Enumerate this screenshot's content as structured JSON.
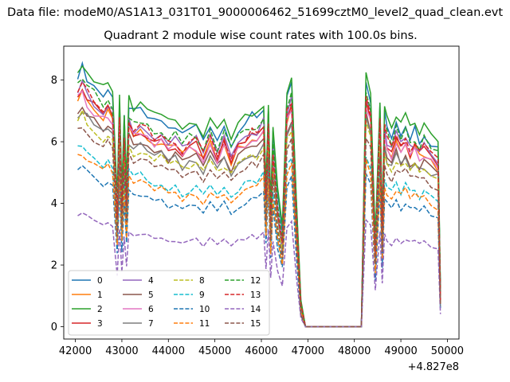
{
  "figure": {
    "suptitle": "Data file: modeM0/AS1A13_031T01_9000006462_51699cztM0_level2_quad_clean.evt",
    "title": "Quadrant 2 module wise count rates with 100.0s bins.",
    "offset_text": "+4.827e8"
  },
  "chart_data": {
    "type": "line",
    "title": "Quadrant 2 module wise count rates with 100.0s bins.",
    "xlabel": "",
    "ylabel": "",
    "x_offset": 482700000,
    "xlim": [
      41750,
      50250
    ],
    "ylim": [
      -0.4,
      9.1
    ],
    "xticks": [
      42000,
      43000,
      44000,
      45000,
      46000,
      47000,
      48000,
      49000,
      50000
    ],
    "xtick_labels": [
      "42000",
      "43000",
      "44000",
      "45000",
      "46000",
      "47000",
      "48000",
      "49000",
      "50000"
    ],
    "yticks": [
      0,
      2,
      4,
      6,
      8
    ],
    "ytick_labels": [
      "0",
      "2",
      "4",
      "6",
      "8"
    ],
    "grid": false,
    "legend": {
      "placement": "lower-left",
      "columns": 4
    },
    "x_anchor": [
      42050,
      42150,
      42250,
      42400,
      42600,
      42700,
      42800,
      42900,
      42950,
      43000,
      43050,
      43100,
      43150,
      43250,
      43400,
      43550,
      43700,
      43850,
      44000,
      44150,
      44300,
      44450,
      44600,
      44750,
      44900,
      45050,
      45200,
      45350,
      45500,
      45650,
      45800,
      45900,
      46050,
      46100,
      46150,
      46200,
      46250,
      46350,
      46450,
      46550,
      46650,
      46750,
      46850,
      46950,
      47050,
      47100,
      47200,
      47500,
      47800,
      48150,
      48250,
      48350,
      48450,
      48550,
      48600,
      48650,
      48700,
      48800,
      48900,
      49000,
      49100,
      49200,
      49300,
      49400,
      49500,
      49650,
      49800,
      49850
    ],
    "series": [
      {
        "name": "0",
        "color": "#1f77b4",
        "dash": "solid",
        "scale": 1.0,
        "offset": 0.2
      },
      {
        "name": "1",
        "color": "#ff7f0e",
        "dash": "solid",
        "scale": 0.94,
        "offset": -0.1
      },
      {
        "name": "2",
        "color": "#2ca02c",
        "dash": "solid",
        "scale": 1.0,
        "offset": 0.4
      },
      {
        "name": "3",
        "color": "#d62728",
        "dash": "solid",
        "scale": 0.94,
        "offset": 0.0
      },
      {
        "name": "4",
        "color": "#9467bd",
        "dash": "solid",
        "scale": 0.96,
        "offset": 0.0
      },
      {
        "name": "5",
        "color": "#8c564b",
        "dash": "solid",
        "scale": 0.88,
        "offset": 0.0
      },
      {
        "name": "6",
        "color": "#e377c2",
        "dash": "solid",
        "scale": 0.92,
        "offset": 0.0
      },
      {
        "name": "7",
        "color": "#7f7f7f",
        "dash": "solid",
        "scale": 0.86,
        "offset": 0.0
      },
      {
        "name": "8",
        "color": "#bcbd22",
        "dash": "dashed",
        "scale": 0.84,
        "offset": 0.0
      },
      {
        "name": "9",
        "color": "#17becf",
        "dash": "dashed",
        "scale": 0.72,
        "offset": 0.0
      },
      {
        "name": "10",
        "color": "#1f77b4",
        "dash": "dashed",
        "scale": 0.63,
        "offset": 0.0
      },
      {
        "name": "11",
        "color": "#ff7f0e",
        "dash": "dashed",
        "scale": 0.69,
        "offset": 0.0
      },
      {
        "name": "12",
        "color": "#2ca02c",
        "dash": "dashed",
        "scale": 0.99,
        "offset": 0.0
      },
      {
        "name": "13",
        "color": "#d62728",
        "dash": "dashed",
        "scale": 0.96,
        "offset": 0.0
      },
      {
        "name": "14",
        "color": "#9467bd",
        "dash": "dashed",
        "scale": 0.45,
        "offset": 0.0
      },
      {
        "name": "15",
        "color": "#8c564b",
        "dash": "dashed",
        "scale": 0.8,
        "offset": 0.0
      }
    ],
    "base_profile": [
      8.0,
      8.2,
      7.9,
      7.6,
      7.3,
      7.5,
      7.2,
      3.8,
      7.1,
      4.0,
      6.5,
      4.2,
      7.0,
      6.7,
      6.8,
      6.6,
      6.4,
      6.5,
      6.2,
      6.3,
      6.0,
      6.2,
      6.3,
      5.9,
      6.4,
      5.9,
      6.3,
      5.8,
      6.2,
      6.4,
      6.6,
      6.5,
      6.9,
      4.2,
      6.9,
      3.5,
      6.0,
      4.0,
      2.9,
      7.2,
      7.7,
      3.8,
      0.6,
      0.0,
      0.0,
      0.0,
      0.0,
      0.0,
      0.0,
      0.0,
      7.8,
      7.2,
      2.5,
      7.0,
      3.1,
      6.7,
      6.3,
      6.0,
      6.5,
      6.1,
      6.4,
      6.0,
      6.2,
      5.9,
      6.1,
      5.8,
      5.6,
      1.0
    ]
  },
  "legend_entries": [
    {
      "label": "0",
      "color": "#1f77b4",
      "dash": "solid"
    },
    {
      "label": "1",
      "color": "#ff7f0e",
      "dash": "solid"
    },
    {
      "label": "2",
      "color": "#2ca02c",
      "dash": "solid"
    },
    {
      "label": "3",
      "color": "#d62728",
      "dash": "solid"
    },
    {
      "label": "4",
      "color": "#9467bd",
      "dash": "solid"
    },
    {
      "label": "5",
      "color": "#8c564b",
      "dash": "solid"
    },
    {
      "label": "6",
      "color": "#e377c2",
      "dash": "solid"
    },
    {
      "label": "7",
      "color": "#7f7f7f",
      "dash": "solid"
    },
    {
      "label": "8",
      "color": "#bcbd22",
      "dash": "dashed"
    },
    {
      "label": "9",
      "color": "#17becf",
      "dash": "dashed"
    },
    {
      "label": "10",
      "color": "#1f77b4",
      "dash": "dashed"
    },
    {
      "label": "11",
      "color": "#ff7f0e",
      "dash": "dashed"
    },
    {
      "label": "12",
      "color": "#2ca02c",
      "dash": "dashed"
    },
    {
      "label": "13",
      "color": "#d62728",
      "dash": "dashed"
    },
    {
      "label": "14",
      "color": "#9467bd",
      "dash": "dashed"
    },
    {
      "label": "15",
      "color": "#8c564b",
      "dash": "dashed"
    }
  ]
}
